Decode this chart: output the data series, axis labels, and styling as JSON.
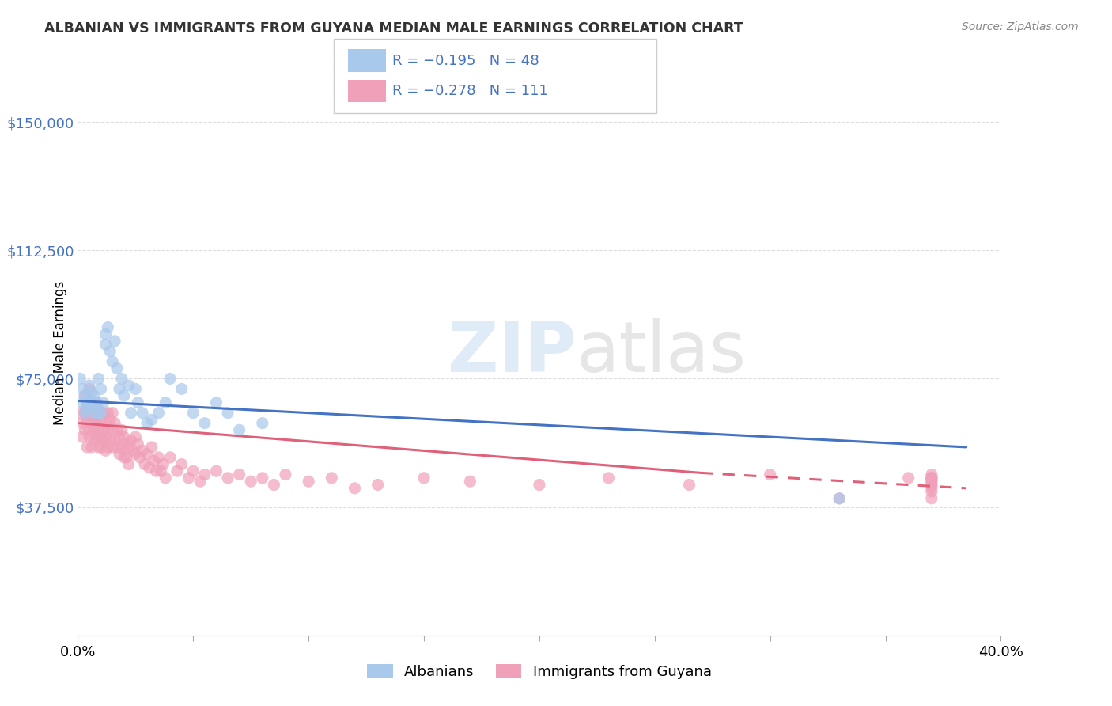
{
  "title": "ALBANIAN VS IMMIGRANTS FROM GUYANA MEDIAN MALE EARNINGS CORRELATION CHART",
  "source": "Source: ZipAtlas.com",
  "ylabel": "Median Male Earnings",
  "yticks": [
    0,
    37500,
    75000,
    112500,
    150000
  ],
  "ytick_labels": [
    "",
    "$37,500",
    "$75,000",
    "$112,500",
    "$150,000"
  ],
  "xlim": [
    0.0,
    0.4
  ],
  "ylim": [
    0,
    165000
  ],
  "legend_r1": "R = −0.195",
  "legend_n1": "N = 48",
  "legend_r2": "R = −0.278",
  "legend_n2": "N = 111",
  "watermark": "ZIPatlas",
  "blue_scatter_color": "#A8C8EC",
  "pink_scatter_color": "#F0A0B8",
  "blue_line_color": "#4472C4",
  "pink_line_color": "#E0607A",
  "grid_color": "#DDDDDD",
  "albanians_x": [
    0.001,
    0.002,
    0.002,
    0.003,
    0.003,
    0.004,
    0.004,
    0.005,
    0.005,
    0.006,
    0.006,
    0.007,
    0.007,
    0.008,
    0.008,
    0.009,
    0.009,
    0.01,
    0.01,
    0.011,
    0.012,
    0.012,
    0.013,
    0.014,
    0.015,
    0.016,
    0.017,
    0.018,
    0.019,
    0.02,
    0.022,
    0.023,
    0.025,
    0.026,
    0.028,
    0.03,
    0.032,
    0.035,
    0.038,
    0.04,
    0.045,
    0.05,
    0.055,
    0.06,
    0.065,
    0.07,
    0.08,
    0.33
  ],
  "albanians_y": [
    75000,
    68000,
    72000,
    65000,
    70000,
    67000,
    66000,
    73000,
    69000,
    71000,
    68000,
    65000,
    70000,
    68000,
    67000,
    65000,
    75000,
    72000,
    65000,
    68000,
    85000,
    88000,
    90000,
    83000,
    80000,
    86000,
    78000,
    72000,
    75000,
    70000,
    73000,
    65000,
    72000,
    68000,
    65000,
    62000,
    63000,
    65000,
    68000,
    75000,
    72000,
    65000,
    62000,
    68000,
    65000,
    60000,
    62000,
    40000
  ],
  "guyana_x": [
    0.001,
    0.002,
    0.002,
    0.003,
    0.003,
    0.003,
    0.004,
    0.004,
    0.004,
    0.005,
    0.005,
    0.005,
    0.005,
    0.006,
    0.006,
    0.006,
    0.007,
    0.007,
    0.007,
    0.007,
    0.008,
    0.008,
    0.008,
    0.009,
    0.009,
    0.009,
    0.01,
    0.01,
    0.01,
    0.011,
    0.011,
    0.011,
    0.012,
    0.012,
    0.012,
    0.013,
    0.013,
    0.013,
    0.014,
    0.014,
    0.015,
    0.015,
    0.015,
    0.016,
    0.016,
    0.017,
    0.017,
    0.018,
    0.018,
    0.019,
    0.019,
    0.02,
    0.02,
    0.021,
    0.021,
    0.022,
    0.022,
    0.023,
    0.024,
    0.025,
    0.025,
    0.026,
    0.027,
    0.028,
    0.029,
    0.03,
    0.031,
    0.032,
    0.033,
    0.034,
    0.035,
    0.036,
    0.037,
    0.038,
    0.04,
    0.043,
    0.045,
    0.048,
    0.05,
    0.053,
    0.055,
    0.06,
    0.065,
    0.07,
    0.075,
    0.08,
    0.085,
    0.09,
    0.1,
    0.11,
    0.12,
    0.13,
    0.15,
    0.17,
    0.2,
    0.23,
    0.265,
    0.3,
    0.33,
    0.36,
    0.37,
    0.37,
    0.37,
    0.37,
    0.37,
    0.37,
    0.37,
    0.37,
    0.37,
    0.37,
    0.37
  ],
  "guyana_y": [
    65000,
    62000,
    58000,
    65000,
    70000,
    60000,
    63000,
    67000,
    55000,
    72000,
    65000,
    60000,
    58000,
    67000,
    62000,
    55000,
    65000,
    60000,
    57000,
    63000,
    68000,
    62000,
    58000,
    66000,
    60000,
    55000,
    63000,
    58000,
    55000,
    65000,
    60000,
    57000,
    62000,
    58000,
    54000,
    65000,
    60000,
    55000,
    63000,
    57000,
    65000,
    60000,
    55000,
    62000,
    57000,
    60000,
    55000,
    58000,
    53000,
    60000,
    55000,
    58000,
    52000,
    56000,
    52000,
    55000,
    50000,
    57000,
    54000,
    58000,
    53000,
    56000,
    52000,
    54000,
    50000,
    53000,
    49000,
    55000,
    51000,
    48000,
    52000,
    48000,
    50000,
    46000,
    52000,
    48000,
    50000,
    46000,
    48000,
    45000,
    47000,
    48000,
    46000,
    47000,
    45000,
    46000,
    44000,
    47000,
    45000,
    46000,
    43000,
    44000,
    46000,
    45000,
    44000,
    46000,
    44000,
    47000,
    40000,
    46000,
    47000,
    46000,
    45000,
    44000,
    46000,
    45000,
    46000,
    44000,
    43000,
    42000,
    40000
  ]
}
